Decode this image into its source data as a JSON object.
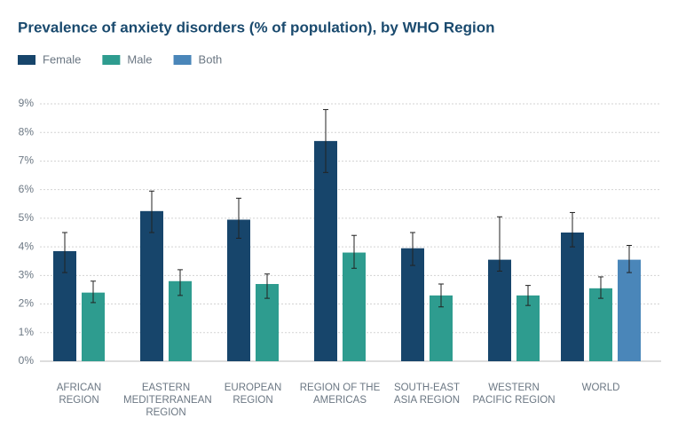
{
  "chart_data": {
    "type": "bar",
    "title": "Prevalence of anxiety disorders (% of population), by WHO Region",
    "categories": [
      "AFRICAN REGION",
      "EASTERN MEDITERRANEAN REGION",
      "EUROPEAN REGION",
      "REGION OF THE AMERICAS",
      "SOUTH-EAST ASIA REGION",
      "WESTERN PACIFIC REGION",
      "WORLD"
    ],
    "series": [
      {
        "name": "Female",
        "color": "#17456b",
        "values": [
          3.85,
          5.25,
          4.95,
          7.7,
          3.95,
          3.55,
          4.5
        ],
        "lower": [
          3.1,
          4.5,
          4.3,
          6.6,
          3.35,
          3.15,
          4.0
        ],
        "upper": [
          4.5,
          5.95,
          5.7,
          8.8,
          4.5,
          5.05,
          5.2
        ]
      },
      {
        "name": "Male",
        "color": "#2e9c8f",
        "values": [
          2.4,
          2.8,
          2.7,
          3.8,
          2.3,
          2.3,
          2.55
        ],
        "lower": [
          2.05,
          2.3,
          2.2,
          3.25,
          1.9,
          1.95,
          2.2
        ],
        "upper": [
          2.8,
          3.2,
          3.05,
          4.4,
          2.7,
          2.65,
          2.95
        ]
      },
      {
        "name": "Both",
        "color": "#4a86b9",
        "values": [
          null,
          null,
          null,
          null,
          null,
          null,
          3.55
        ],
        "lower": [
          null,
          null,
          null,
          null,
          null,
          null,
          3.1
        ],
        "upper": [
          null,
          null,
          null,
          null,
          null,
          null,
          4.05
        ]
      }
    ],
    "ylim": [
      0,
      9
    ],
    "yticks": [
      {
        "value": 0,
        "label": "0%"
      },
      {
        "value": 1,
        "label": "1%"
      },
      {
        "value": 2,
        "label": "2%"
      },
      {
        "value": 3,
        "label": "3%"
      },
      {
        "value": 4,
        "label": "4%"
      },
      {
        "value": 5,
        "label": "5%"
      },
      {
        "value": 6,
        "label": "6%"
      },
      {
        "value": 7,
        "label": "7%"
      },
      {
        "value": 8,
        "label": "8%"
      },
      {
        "value": 9,
        "label": "9%"
      }
    ],
    "grid": true
  }
}
